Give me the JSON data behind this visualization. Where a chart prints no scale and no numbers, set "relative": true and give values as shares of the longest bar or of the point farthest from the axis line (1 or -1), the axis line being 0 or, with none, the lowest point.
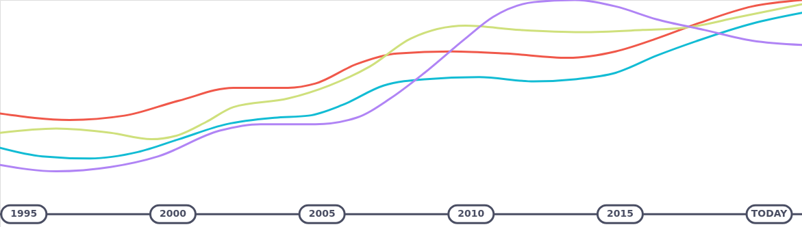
{
  "chart_data": {
    "type": "line",
    "relative": true,
    "grid": false,
    "marker": "none",
    "line_style": "solid",
    "xlim": [
      1994.2,
      2021.1
    ],
    "xticks": [
      1995,
      2000,
      2005,
      2010,
      2015,
      {
        "value": 2020,
        "label": "TODAY"
      }
    ],
    "series": [
      {
        "color": "#f0584a",
        "x": [
          1994.2,
          1996.53,
          1998.37,
          2000.2,
          2002.03,
          2003.86,
          2004.78,
          2006.15,
          2007.52,
          2009.35,
          2011.19,
          2013.25,
          2014.85,
          2016.22,
          2017.6,
          2019.43,
          2021.1
        ],
        "values": [
          0.47,
          0.44,
          0.46,
          0.53,
          0.59,
          0.59,
          0.61,
          0.7,
          0.75,
          0.76,
          0.75,
          0.73,
          0.76,
          0.82,
          0.89,
          0.97,
          1.0
        ]
      },
      {
        "color": "#cfe07c",
        "x": [
          1994.2,
          1996.08,
          1997.91,
          1999.28,
          2000.2,
          2001.11,
          2002.03,
          2003.86,
          2005.23,
          2006.61,
          2007.98,
          2009.81,
          2011.64,
          2013.7,
          2015.76,
          2017.14,
          2018.97,
          2021.1
        ],
        "values": [
          0.38,
          0.4,
          0.38,
          0.35,
          0.37,
          0.43,
          0.5,
          0.54,
          0.6,
          0.69,
          0.82,
          0.88,
          0.86,
          0.85,
          0.86,
          0.87,
          0.92,
          0.98
        ]
      },
      {
        "color": "#12bcd4",
        "x": [
          1994.2,
          1995.62,
          1997.22,
          1998.82,
          2000.2,
          2001.8,
          2003.4,
          2004.55,
          2005.69,
          2007.06,
          2008.44,
          2010.27,
          2012.1,
          2013.48,
          2014.85,
          2016.22,
          2017.6,
          2019.43,
          2021.1
        ],
        "values": [
          0.31,
          0.27,
          0.26,
          0.29,
          0.35,
          0.42,
          0.45,
          0.46,
          0.51,
          0.6,
          0.63,
          0.64,
          0.62,
          0.63,
          0.66,
          0.74,
          0.81,
          0.89,
          0.94
        ]
      },
      {
        "color": "#b084f5",
        "x": [
          1994.2,
          1996.08,
          1997.91,
          1999.51,
          2001.57,
          2002.94,
          2004.78,
          2006.15,
          2007.29,
          2008.44,
          2009.81,
          2010.73,
          2012.1,
          2013.48,
          2014.85,
          2016.22,
          2017.83,
          2019.43,
          2021.1
        ],
        "values": [
          0.23,
          0.2,
          0.22,
          0.27,
          0.39,
          0.42,
          0.42,
          0.45,
          0.54,
          0.66,
          0.82,
          0.92,
          0.99,
          1.0,
          0.97,
          0.91,
          0.86,
          0.81,
          0.79
        ]
      }
    ]
  }
}
